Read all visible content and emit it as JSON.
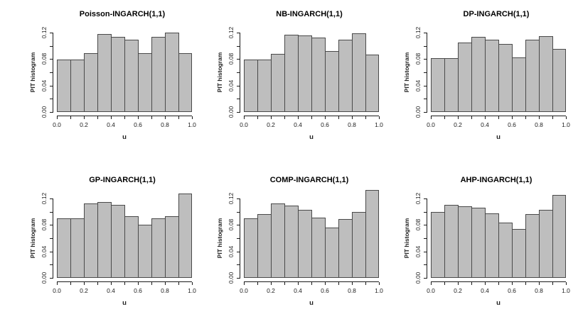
{
  "figure": {
    "kind": "R multi-panel PIT histogram figure",
    "rows": 2,
    "cols": 3,
    "background": "#ffffff",
    "bar_fill": "#bebebe",
    "bar_border": "#4a4a4a",
    "text_color": "#000000"
  },
  "axes": {
    "x_label": "u",
    "y_label": "PIT histogram",
    "x_tick_values": [
      0,
      0.2,
      0.4,
      0.6,
      0.8,
      1.0
    ],
    "x_tick_labels": [
      "0.0",
      "0.2",
      "0.4",
      "0.6",
      "0.8",
      "1.0"
    ],
    "x_minor_tick_values": [
      0.1,
      0.3,
      0.5,
      0.7,
      0.9
    ],
    "y_tick_values": [
      0,
      0.04,
      0.08,
      0.12
    ],
    "y_tick_labels": [
      "0.00",
      "0.04",
      "0.08",
      "0.12"
    ],
    "y_minor_tick_values": [
      0.02,
      0.06,
      0.1
    ],
    "xlim": [
      0,
      1
    ],
    "ylim": [
      0,
      0.135
    ],
    "grid": "off",
    "legend": "none"
  },
  "chart_data": [
    {
      "type": "bar",
      "key": "poisson",
      "title": "Poisson-INGARCH(1,1)",
      "xlabel": "u",
      "ylabel": "PIT histogram",
      "bin_edges": [
        0,
        0.1,
        0.2,
        0.3,
        0.4,
        0.5,
        0.6,
        0.7,
        0.8,
        0.9,
        1.0
      ],
      "values": [
        0.079,
        0.079,
        0.089,
        0.118,
        0.114,
        0.109,
        0.089,
        0.114,
        0.12,
        0.089
      ],
      "ylim": [
        0,
        0.135
      ]
    },
    {
      "type": "bar",
      "key": "nb",
      "title": "NB-INGARCH(1,1)",
      "xlabel": "u",
      "ylabel": "PIT histogram",
      "bin_edges": [
        0,
        0.1,
        0.2,
        0.3,
        0.4,
        0.5,
        0.6,
        0.7,
        0.8,
        0.9,
        1.0
      ],
      "values": [
        0.079,
        0.079,
        0.088,
        0.117,
        0.116,
        0.112,
        0.092,
        0.109,
        0.119,
        0.087
      ],
      "ylim": [
        0,
        0.135
      ]
    },
    {
      "type": "bar",
      "key": "dp",
      "title": "DP-INGARCH(1,1)",
      "xlabel": "u",
      "ylabel": "PIT histogram",
      "bin_edges": [
        0,
        0.1,
        0.2,
        0.3,
        0.4,
        0.5,
        0.6,
        0.7,
        0.8,
        0.9,
        1.0
      ],
      "values": [
        0.081,
        0.081,
        0.105,
        0.114,
        0.109,
        0.103,
        0.082,
        0.109,
        0.115,
        0.095
      ],
      "ylim": [
        0,
        0.135
      ]
    },
    {
      "type": "bar",
      "key": "gp",
      "title": "GP-INGARCH(1,1)",
      "xlabel": "u",
      "ylabel": "PIT histogram",
      "bin_edges": [
        0,
        0.1,
        0.2,
        0.3,
        0.4,
        0.5,
        0.6,
        0.7,
        0.8,
        0.9,
        1.0
      ],
      "values": [
        0.09,
        0.09,
        0.112,
        0.115,
        0.11,
        0.093,
        0.08,
        0.09,
        0.093,
        0.127
      ],
      "ylim": [
        0,
        0.135
      ]
    },
    {
      "type": "bar",
      "key": "comp",
      "title": "COMP-INGARCH(1,1)",
      "xlabel": "u",
      "ylabel": "PIT histogram",
      "bin_edges": [
        0,
        0.1,
        0.2,
        0.3,
        0.4,
        0.5,
        0.6,
        0.7,
        0.8,
        0.9,
        1.0
      ],
      "values": [
        0.09,
        0.096,
        0.112,
        0.109,
        0.103,
        0.091,
        0.076,
        0.089,
        0.1,
        0.133
      ],
      "ylim": [
        0,
        0.135
      ]
    },
    {
      "type": "bar",
      "key": "ahp",
      "title": "AHP-INGARCH(1,1)",
      "xlabel": "u",
      "ylabel": "PIT histogram",
      "bin_edges": [
        0,
        0.1,
        0.2,
        0.3,
        0.4,
        0.5,
        0.6,
        0.7,
        0.8,
        0.9,
        1.0
      ],
      "values": [
        0.1,
        0.11,
        0.108,
        0.106,
        0.098,
        0.084,
        0.074,
        0.096,
        0.103,
        0.125
      ],
      "ylim": [
        0,
        0.135
      ]
    }
  ]
}
